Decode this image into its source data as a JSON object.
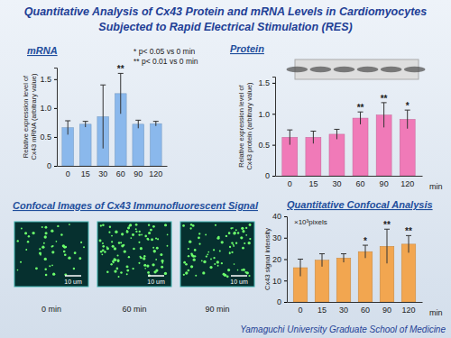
{
  "page": {
    "title": [
      "Quantitative Analysis of Cx43 Protein and mRNA Levels in Cardiomyocytes",
      "Subjected to Rapid Electrical Stimulation (RES)"
    ],
    "footer": "Yamaguchi University Graduate School of Medicine",
    "confocal": {
      "title": "Confocal Images of Cx43 Immunofluorescent Signal",
      "images": [
        {
          "caption": "0 min",
          "scale": "10 um"
        },
        {
          "caption": "60 min",
          "scale": "10 um"
        },
        {
          "caption": "90 min",
          "scale": "10 um"
        }
      ]
    }
  },
  "chart_data": [
    {
      "type": "bar",
      "title": "mRNA",
      "y_label": [
        "Relative expression level of",
        "Cx43 mRNA (arbitrary value)"
      ],
      "notes": [
        "* p< 0.05 vs 0 min",
        "** p< 0.01 vs 0 min"
      ],
      "categories": [
        "0",
        "15",
        "30",
        "60",
        "90",
        "120"
      ],
      "values": [
        0.66,
        0.72,
        0.85,
        1.25,
        0.72,
        0.73
      ],
      "errors": [
        0.12,
        0.05,
        0.55,
        0.35,
        0.07,
        0.04
      ],
      "annotations": [
        {
          "category": "60",
          "text": "**"
        }
      ],
      "color": "#8ab8ec",
      "ylim": [
        0,
        1.7
      ],
      "yticks": [
        0,
        0.5,
        {
          "value": 1,
          "label": "1.0"
        },
        1.5
      ]
    },
    {
      "type": "bar",
      "title": "Protein",
      "y_label": [
        "Relative expression level of",
        "Cx43 protein (arbitrary value)"
      ],
      "x_label": "min",
      "categories": [
        "0",
        "15",
        "30",
        "60",
        "90",
        "120"
      ],
      "values": [
        0.62,
        0.62,
        0.67,
        0.93,
        0.98,
        0.91
      ],
      "errors": [
        0.12,
        0.1,
        0.08,
        0.1,
        0.2,
        0.15
      ],
      "annotations": [
        {
          "category": "60",
          "text": "**"
        },
        {
          "category": "90",
          "text": "**"
        },
        {
          "category": "120",
          "text": "*"
        }
      ],
      "color": "#f07ab8",
      "ylim": [
        0,
        1.6
      ],
      "yticks": [
        0,
        0.5,
        {
          "value": 1,
          "label": "1.0"
        },
        1.5
      ]
    },
    {
      "type": "bar",
      "title": "Quantitative  Confocal Analysis",
      "y_label": [
        "Cx43 signal intensity"
      ],
      "y_unit": "×10³pixels",
      "x_label": "min",
      "categories": [
        "0",
        "15",
        "30",
        "60",
        "90",
        "120"
      ],
      "values": [
        16,
        19.5,
        20.5,
        23.5,
        26,
        27
      ],
      "errors": [
        4,
        3,
        2,
        3,
        8,
        4
      ],
      "annotations": [
        {
          "category": "60",
          "text": "*"
        },
        {
          "category": "90",
          "text": "**"
        },
        {
          "category": "120",
          "text": "**"
        }
      ],
      "color": "#f2a650",
      "ylim": [
        0,
        40
      ],
      "yticks": [
        0,
        10,
        20,
        30,
        40
      ]
    }
  ]
}
